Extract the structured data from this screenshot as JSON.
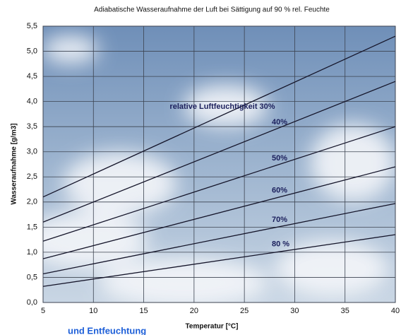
{
  "chart_data": {
    "type": "line",
    "title": "Adiabatische Wasseraufnahme der Luft bei Sättigung auf 90 % rel. Feuchte",
    "x_label": "Temperatur [°C]",
    "y_label": "Wasseraufnahme [g/m3]",
    "x": [
      5,
      40
    ],
    "series": [
      {
        "name": "relative Luftfeuchtigkeit 30%",
        "color": "#15152a",
        "values": [
          2.1,
          5.3
        ]
      },
      {
        "name": "40%",
        "color": "#15152a",
        "values": [
          1.6,
          4.4
        ]
      },
      {
        "name": "50%",
        "color": "#15152a",
        "values": [
          1.22,
          3.5
        ]
      },
      {
        "name": "60%",
        "color": "#15152a",
        "values": [
          0.87,
          2.7
        ]
      },
      {
        "name": "70%",
        "color": "#15152a",
        "values": [
          0.57,
          1.97
        ]
      },
      {
        "name": "80 %",
        "color": "#15152a",
        "values": [
          0.32,
          1.35
        ]
      }
    ],
    "xlim": [
      5,
      40
    ],
    "xticks": [
      5,
      10,
      15,
      20,
      25,
      30,
      35,
      40
    ],
    "ylim": [
      0,
      5.5
    ],
    "yticks": [
      {
        "value": 0,
        "label": "0,0"
      },
      {
        "value": 0.5,
        "label": "0,5"
      },
      {
        "value": 1,
        "label": "1,0"
      },
      {
        "value": 1.5,
        "label": "1,5"
      },
      {
        "value": 2,
        "label": "2,0"
      },
      {
        "value": 2.5,
        "label": "2,5"
      },
      {
        "value": 3,
        "label": "3,0"
      },
      {
        "value": 3.5,
        "label": "3,5"
      },
      {
        "value": 4,
        "label": "4,0"
      },
      {
        "value": 4.5,
        "label": "4,5"
      },
      {
        "value": 5,
        "label": "5,0"
      },
      {
        "value": 5.5,
        "label": "5,5"
      }
    ],
    "grid": true
  },
  "page_fragment": "und Entfeuchtung"
}
